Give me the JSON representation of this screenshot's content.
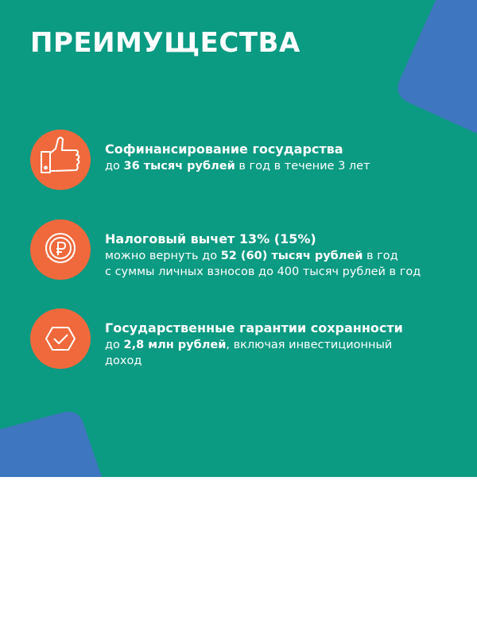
{
  "title": "ПРЕИМУЩЕСТВА",
  "colors": {
    "background": "#0b9a82",
    "accent": "#f0693c",
    "shape": "#3f76c0"
  },
  "items": [
    {
      "icon": "thumbs-up-icon",
      "heading": "Софинансирование государства",
      "line1_pre": "до ",
      "line1_bold": "36 тысяч рублей",
      "line1_post": " в год в течение 3 лет"
    },
    {
      "icon": "ruble-coin-icon",
      "heading": "Налоговый вычет 13% (15%)",
      "line1_pre": "можно вернуть до ",
      "line1_bold": "52 (60) тысяч рублей",
      "line1_post": " в год",
      "line2": "с суммы личных взносов до 400 тысяч рублей в год"
    },
    {
      "icon": "shield-check-icon",
      "heading": "Государственные гарантии сохранности",
      "line1_pre": "до ",
      "line1_bold": "2,8 млн рублей",
      "line1_post": ", включая инвестиционный",
      "line2": "доход"
    }
  ]
}
